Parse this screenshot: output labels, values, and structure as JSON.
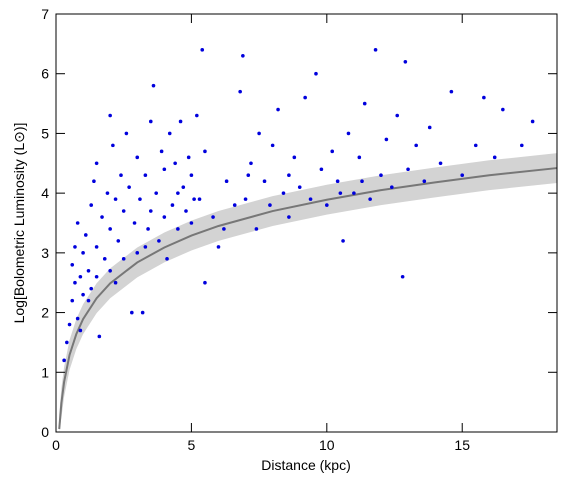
{
  "chart_data": {
    "type": "scatter",
    "xlabel": "Distance (kpc)",
    "ylabel": "Log[Bolometric Luminosity (L⊙)]",
    "xlim": [
      0,
      18.5
    ],
    "ylim": [
      0,
      7
    ],
    "xticks": [
      0,
      5,
      10,
      15
    ],
    "yticks": [
      0,
      1,
      2,
      3,
      4,
      5,
      6,
      7
    ],
    "series": [
      {
        "color": "#0000dd",
        "x": [
          0.3,
          0.4,
          0.5,
          0.6,
          0.6,
          0.7,
          0.7,
          0.8,
          0.8,
          0.9,
          1.0,
          1.0,
          1.1,
          1.2,
          1.3,
          1.3,
          1.4,
          1.5,
          1.5,
          1.5,
          1.6,
          1.7,
          1.8,
          1.9,
          2.0,
          2.0,
          2.0,
          2.1,
          2.2,
          2.3,
          2.4,
          2.5,
          2.5,
          2.6,
          2.7,
          2.8,
          2.9,
          3.0,
          3.0,
          3.1,
          3.2,
          3.3,
          3.4,
          3.5,
          3.5,
          3.6,
          3.7,
          3.8,
          3.9,
          4.0,
          4.0,
          4.1,
          4.2,
          4.3,
          4.4,
          4.5,
          4.6,
          4.7,
          4.8,
          4.9,
          5.0,
          5.0,
          5.2,
          5.3,
          5.4,
          5.5,
          5.5,
          5.8,
          6.0,
          6.3,
          6.6,
          6.8,
          6.9,
          7.0,
          7.2,
          7.4,
          7.5,
          7.7,
          7.9,
          8.0,
          8.2,
          8.4,
          8.6,
          8.8,
          9.0,
          9.2,
          9.4,
          9.6,
          9.8,
          10.0,
          10.2,
          10.4,
          10.6,
          10.8,
          11.0,
          11.2,
          11.4,
          11.6,
          11.8,
          12.0,
          12.2,
          12.4,
          12.6,
          12.8,
          12.9,
          13.0,
          13.3,
          13.6,
          13.8,
          14.2,
          14.6,
          15.0,
          15.5,
          15.8,
          16.2,
          16.5,
          17.2,
          17.6,
          6.2,
          7.1,
          3.3,
          2.2,
          1.2,
          0.9,
          4.5,
          5.1,
          8.6,
          10.5,
          11.3
        ],
        "values": [
          1.2,
          1.5,
          1.8,
          2.2,
          2.8,
          3.1,
          2.5,
          1.9,
          3.5,
          2.6,
          3.0,
          2.3,
          3.3,
          2.7,
          3.8,
          2.4,
          4.2,
          3.1,
          4.5,
          2.6,
          1.6,
          3.6,
          2.9,
          4.0,
          5.3,
          3.4,
          2.7,
          4.8,
          3.9,
          3.2,
          4.3,
          2.9,
          3.7,
          5.0,
          4.1,
          2.0,
          3.5,
          4.6,
          3.0,
          3.9,
          2.0,
          4.3,
          3.4,
          5.2,
          3.7,
          5.8,
          4.0,
          3.2,
          4.7,
          3.6,
          4.4,
          2.9,
          5.0,
          3.8,
          4.5,
          3.4,
          5.2,
          4.1,
          3.7,
          4.6,
          3.5,
          4.3,
          5.3,
          3.9,
          6.4,
          2.5,
          4.7,
          3.6,
          3.1,
          4.2,
          3.8,
          5.7,
          6.3,
          3.9,
          4.5,
          3.4,
          5.0,
          4.2,
          3.8,
          4.8,
          5.4,
          4.0,
          3.6,
          4.6,
          4.1,
          5.6,
          3.9,
          6.0,
          4.4,
          3.8,
          4.7,
          4.2,
          3.2,
          5.0,
          4.0,
          4.6,
          5.5,
          3.9,
          6.4,
          4.3,
          4.9,
          4.1,
          5.3,
          2.6,
          6.2,
          4.4,
          4.8,
          4.2,
          5.1,
          4.5,
          5.7,
          4.3,
          4.8,
          5.6,
          4.6,
          5.4,
          4.8,
          5.2,
          3.4,
          4.3,
          3.1,
          2.5,
          2.2,
          1.7,
          4.0,
          3.9,
          4.3,
          4.0,
          4.2
        ]
      }
    ],
    "curve": {
      "color": "#777777",
      "x": [
        0.12,
        0.2,
        0.3,
        0.5,
        0.75,
        1,
        1.5,
        2,
        3,
        4,
        5,
        6,
        8,
        10,
        12,
        14,
        16,
        18.5
      ],
      "values": [
        0.05,
        0.49,
        0.84,
        1.29,
        1.64,
        1.89,
        2.24,
        2.49,
        2.84,
        3.09,
        3.29,
        3.45,
        3.7,
        3.89,
        4.05,
        4.18,
        4.3,
        4.42
      ]
    },
    "band": {
      "color": "#d3d3d3",
      "x": [
        0.12,
        0.2,
        0.3,
        0.5,
        0.75,
        1,
        1.5,
        2,
        3,
        4,
        5,
        6,
        8,
        10,
        12,
        14,
        16,
        18.5
      ],
      "lower": [
        0,
        0.24,
        0.59,
        1.04,
        1.39,
        1.64,
        1.99,
        2.24,
        2.59,
        2.84,
        3.04,
        3.2,
        3.45,
        3.64,
        3.8,
        3.93,
        4.05,
        4.17
      ],
      "upper": [
        0.3,
        0.74,
        1.09,
        1.54,
        1.89,
        2.14,
        2.49,
        2.74,
        3.09,
        3.34,
        3.54,
        3.7,
        3.95,
        4.14,
        4.3,
        4.43,
        4.55,
        4.67
      ]
    }
  }
}
